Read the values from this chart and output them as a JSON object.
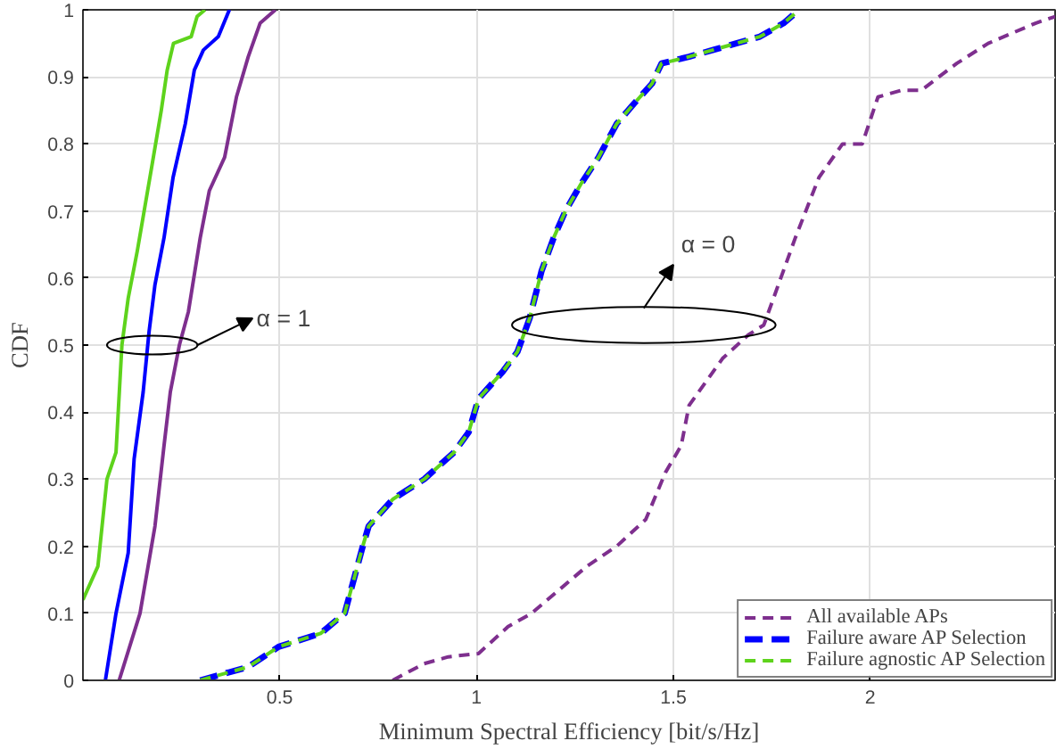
{
  "chart_data": {
    "type": "line",
    "xlabel": "Minimum Spectral Efficiency [bit/s/Hz]",
    "ylabel": "CDF",
    "xlim": [
      0,
      2.47
    ],
    "ylim": [
      0,
      1
    ],
    "xticks": [
      0.5,
      1,
      1.5,
      2
    ],
    "yticks": [
      0,
      0.1,
      0.2,
      0.3,
      0.4,
      0.5,
      0.6,
      0.7,
      0.8,
      0.9,
      1
    ],
    "grid": true,
    "legend": "bottom right",
    "series": [
      {
        "name": "All available APs",
        "color": "#7e2f8e",
        "line_style": "dashed",
        "x": [
          0.787,
          0.867,
          0.928,
          1.005,
          1.08,
          1.14,
          1.2,
          1.28,
          1.356,
          1.43,
          1.48,
          1.52,
          1.54,
          1.625,
          1.69,
          1.73,
          1.81,
          1.87,
          1.93,
          1.98,
          2.02,
          2.08,
          2.13,
          2.22,
          2.3,
          2.42,
          2.47
        ],
        "values": [
          0,
          0.025,
          0.035,
          0.04,
          0.08,
          0.1,
          0.13,
          0.17,
          0.2,
          0.24,
          0.31,
          0.35,
          0.41,
          0.48,
          0.515,
          0.53,
          0.66,
          0.75,
          0.8,
          0.8,
          0.87,
          0.88,
          0.88,
          0.92,
          0.95,
          0.98,
          0.99
        ]
      },
      {
        "name": "Failure aware AP Selection",
        "color": "#0000ff",
        "line_style": "dashed",
        "x": [
          0.298,
          0.42,
          0.497,
          0.604,
          0.665,
          0.711,
          0.726,
          0.787,
          0.867,
          0.943,
          0.98,
          1.005,
          1.066,
          1.104,
          1.135,
          1.165,
          1.196,
          1.226,
          1.265,
          1.31,
          1.356,
          1.4,
          1.446,
          1.47,
          1.54,
          1.6,
          1.66,
          1.72,
          1.78,
          1.82
        ],
        "values": [
          0,
          0.02,
          0.05,
          0.07,
          0.1,
          0.2,
          0.23,
          0.27,
          0.3,
          0.34,
          0.37,
          0.42,
          0.46,
          0.49,
          0.54,
          0.61,
          0.66,
          0.7,
          0.74,
          0.78,
          0.83,
          0.86,
          0.89,
          0.92,
          0.93,
          0.94,
          0.95,
          0.96,
          0.98,
          1
        ]
      },
      {
        "name": "Failure agnostic AP Selection",
        "color": "#5ed31c",
        "line_style": "dashed",
        "x": [
          0.298,
          0.42,
          0.497,
          0.604,
          0.665,
          0.711,
          0.726,
          0.787,
          0.867,
          0.943,
          0.98,
          1.005,
          1.066,
          1.104,
          1.135,
          1.165,
          1.196,
          1.226,
          1.265,
          1.31,
          1.356,
          1.4,
          1.446,
          1.47,
          1.54,
          1.6,
          1.66,
          1.72,
          1.78,
          1.82
        ],
        "values": [
          0,
          0.02,
          0.05,
          0.07,
          0.1,
          0.2,
          0.23,
          0.27,
          0.3,
          0.34,
          0.37,
          0.42,
          0.46,
          0.49,
          0.54,
          0.61,
          0.66,
          0.7,
          0.74,
          0.78,
          0.83,
          0.86,
          0.89,
          0.92,
          0.93,
          0.94,
          0.95,
          0.96,
          0.98,
          1
        ]
      },
      {
        "color": "#5ed31c",
        "line_style": "solid",
        "x": [
          0,
          0.038,
          0.061,
          0.084,
          0.099,
          0.115,
          0.138,
          0.176,
          0.199,
          0.214,
          0.23,
          0.275,
          0.29,
          0.31
        ],
        "values": [
          0.12,
          0.17,
          0.3,
          0.34,
          0.5,
          0.57,
          0.64,
          0.77,
          0.85,
          0.91,
          0.95,
          0.96,
          0.99,
          1
        ]
      },
      {
        "color": "#0000ff",
        "line_style": "solid",
        "x": [
          0.057,
          0.084,
          0.115,
          0.13,
          0.153,
          0.168,
          0.183,
          0.206,
          0.229,
          0.26,
          0.283,
          0.306,
          0.344,
          0.372
        ],
        "values": [
          0,
          0.1,
          0.19,
          0.33,
          0.43,
          0.52,
          0.59,
          0.66,
          0.75,
          0.83,
          0.91,
          0.94,
          0.96,
          1
        ]
      },
      {
        "color": "#7e2f8e",
        "line_style": "solid",
        "x": [
          0.092,
          0.145,
          0.183,
          0.206,
          0.222,
          0.245,
          0.268,
          0.298,
          0.321,
          0.36,
          0.39,
          0.42,
          0.45,
          0.489
        ],
        "values": [
          0,
          0.1,
          0.23,
          0.35,
          0.43,
          0.5,
          0.55,
          0.66,
          0.73,
          0.78,
          0.87,
          0.93,
          0.98,
          1
        ]
      }
    ],
    "annotations": [
      "α = 1",
      "α = 0"
    ]
  }
}
